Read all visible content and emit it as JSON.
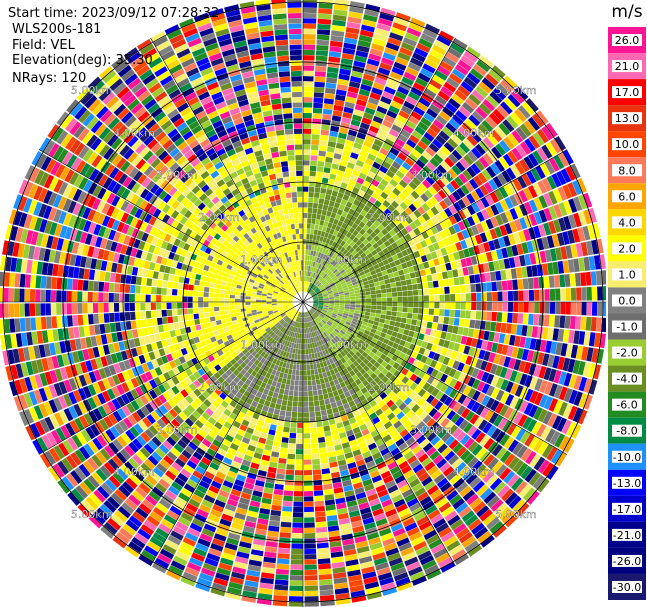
{
  "header": {
    "start_time": "Start time: 2023/09/12 07:28:32",
    "instrument": "WLS200s-181",
    "field": "Field: VEL",
    "elevation": "Elevation(deg): 35.30",
    "nrays": "NRays: 120"
  },
  "range_rings": {
    "labels": [
      "1.00km",
      "2.00km",
      "3.00km",
      "4.00km",
      "5.00km"
    ],
    "max_km": 5.1
  },
  "colorbar": {
    "unit": "m/s",
    "ticks": [
      "26.0",
      "21.0",
      "17.0",
      "13.0",
      "10.0",
      "8.0",
      "6.0",
      "4.0",
      "2.0",
      "1.0",
      "0.0",
      "-1.0",
      "-2.0",
      "-4.0",
      "-6.0",
      "-8.0",
      "-10.0",
      "-13.0",
      "-17.0",
      "-21.0",
      "-26.0",
      "-30.0"
    ],
    "colors": [
      "#ff1493",
      "#ff69b4",
      "#ff0000",
      "#e83410",
      "#ff4500",
      "#fa7a5a",
      "#ffa500",
      "#ffd700",
      "#ffff00",
      "#f7ee70",
      "#808080",
      "#6e6e6e",
      "#9acd32",
      "#6b8e23",
      "#228b22",
      "#008b45",
      "#1e90ff",
      "#0000ff",
      "#0000cd",
      "#00008b",
      "#000080",
      "#191970"
    ]
  }
}
